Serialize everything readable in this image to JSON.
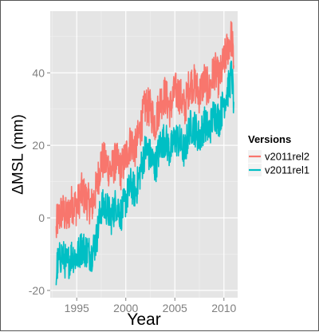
{
  "chart_data": {
    "type": "line",
    "xlabel": "Year",
    "ylabel": "ΔMSL (mm)",
    "xlim": [
      1992.3,
      2011.4
    ],
    "ylim": [
      -22,
      57
    ],
    "x_ticks": [
      1995,
      2000,
      2005,
      2010
    ],
    "y_ticks": [
      -20,
      0,
      20,
      40
    ],
    "grid": true,
    "background": "#e5e5e5",
    "legend": {
      "title": "Versions",
      "placement": "right",
      "entries": [
        "v2011rel2",
        "v2011rel1"
      ]
    },
    "series": [
      {
        "name": "v2011rel2",
        "color": "#f8766d",
        "x": [
          1992.9,
          1993.0,
          1993.5,
          1994.0,
          1994.5,
          1995.0,
          1995.5,
          1996.0,
          1996.5,
          1997.0,
          1997.5,
          1998.0,
          1998.5,
          1999.0,
          1999.5,
          2000.0,
          2000.5,
          2001.0,
          2001.5,
          2002.0,
          2002.5,
          2003.0,
          2003.5,
          2004.0,
          2004.5,
          2005.0,
          2005.5,
          2006.0,
          2006.5,
          2007.0,
          2007.5,
          2008.0,
          2008.5,
          2009.0,
          2009.5,
          2010.0,
          2010.5,
          2010.8,
          2011.0
        ],
        "y": [
          -4,
          -1,
          2,
          0,
          4,
          3,
          7,
          5,
          3,
          8,
          16,
          15,
          13,
          16,
          13,
          17,
          21,
          19,
          25,
          31,
          30,
          26,
          32,
          34,
          30,
          35,
          34,
          30,
          37,
          37,
          34,
          38,
          35,
          41,
          38,
          43,
          48,
          50,
          42
        ]
      },
      {
        "name": "v2011rel1",
        "color": "#00bfc4",
        "x": [
          1992.9,
          1993.0,
          1993.5,
          1994.0,
          1994.5,
          1995.0,
          1995.5,
          1996.0,
          1996.5,
          1997.0,
          1997.5,
          1998.0,
          1998.5,
          1999.0,
          1999.5,
          2000.0,
          2000.5,
          2001.0,
          2001.5,
          2002.0,
          2002.5,
          2003.0,
          2003.5,
          2004.0,
          2004.5,
          2005.0,
          2005.5,
          2006.0,
          2006.5,
          2007.0,
          2007.5,
          2008.0,
          2008.5,
          2009.0,
          2009.5,
          2010.0,
          2010.5,
          2010.8,
          2011.0
        ],
        "y": [
          -17,
          -13,
          -10,
          -13,
          -10,
          -11,
          -8,
          -9,
          -10,
          -6,
          3,
          3,
          0,
          4,
          1,
          5,
          9,
          7,
          13,
          19,
          17,
          14,
          20,
          22,
          18,
          22,
          21,
          18,
          25,
          25,
          22,
          26,
          24,
          29,
          27,
          32,
          36,
          40,
          32
        ]
      }
    ]
  }
}
